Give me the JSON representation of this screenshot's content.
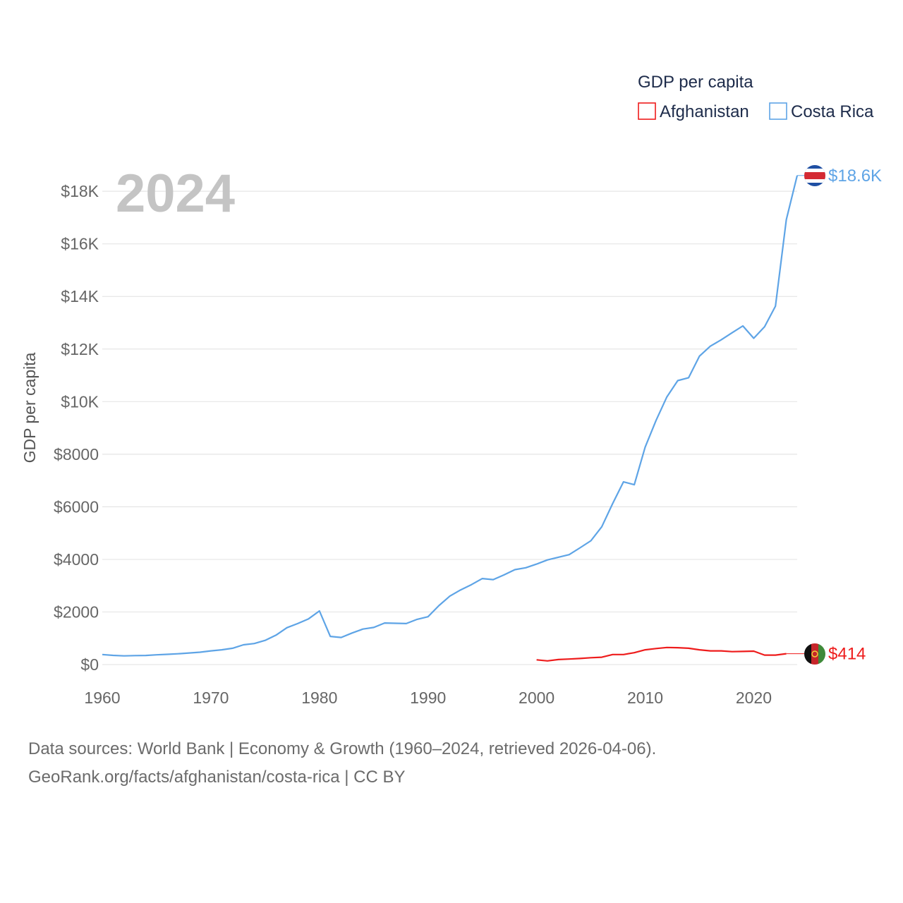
{
  "legend": {
    "title": "GDP per capita",
    "items": [
      {
        "label": "Afghanistan",
        "color": "#ee1c1c"
      },
      {
        "label": "Costa Rica",
        "color": "#5ea4e6"
      }
    ]
  },
  "year_label": "2024",
  "footer": {
    "line1": "Data sources: World Bank | Economy & Growth (1960–2024, retrieved 2026-04-06).",
    "line2": "GeoRank.org/facts/afghanistan/costa-rica | CC BY"
  },
  "chart_data": {
    "type": "line",
    "title": "GDP per capita",
    "xlabel": "",
    "ylabel": "GDP per capita",
    "xlim": [
      1960,
      2024
    ],
    "ylim": [
      0,
      19000
    ],
    "x_ticks": [
      1960,
      1970,
      1980,
      1990,
      2000,
      2010,
      2020
    ],
    "x_tick_labels": [
      "1960",
      "1970",
      "1980",
      "1990",
      "2000",
      "2010",
      "2020"
    ],
    "y_ticks": [
      0,
      2000,
      4000,
      6000,
      8000,
      10000,
      12000,
      14000,
      16000,
      18000
    ],
    "y_tick_labels": [
      "$0",
      "$2000",
      "$4000",
      "$6000",
      "$8000",
      "$10K",
      "$12K",
      "$14K",
      "$16K",
      "$18K"
    ],
    "grid": true,
    "legend_position": "top-right",
    "series": [
      {
        "name": "Costa Rica",
        "color": "#5ea4e6",
        "end_label": "$18.6K",
        "end_value": 18600,
        "x": [
          1960,
          1961,
          1962,
          1963,
          1964,
          1965,
          1966,
          1967,
          1968,
          1969,
          1970,
          1971,
          1972,
          1973,
          1974,
          1975,
          1976,
          1977,
          1978,
          1979,
          1980,
          1981,
          1982,
          1983,
          1984,
          1985,
          1986,
          1987,
          1988,
          1989,
          1990,
          1991,
          1992,
          1993,
          1994,
          1995,
          1996,
          1997,
          1998,
          1999,
          2000,
          2001,
          2002,
          2003,
          2004,
          2005,
          2006,
          2007,
          2008,
          2009,
          2010,
          2011,
          2012,
          2013,
          2014,
          2015,
          2016,
          2017,
          2018,
          2019,
          2020,
          2021,
          2022,
          2023,
          2024
        ],
        "values": [
          380,
          350,
          330,
          340,
          345,
          370,
          390,
          410,
          440,
          470,
          520,
          560,
          620,
          750,
          800,
          920,
          1120,
          1400,
          1560,
          1740,
          2040,
          1070,
          1030,
          1200,
          1350,
          1410,
          1580,
          1570,
          1560,
          1720,
          1820,
          2240,
          2600,
          2840,
          3040,
          3270,
          3230,
          3410,
          3610,
          3680,
          3820,
          3980,
          4080,
          4180,
          4440,
          4710,
          5240,
          6120,
          6950,
          6840,
          8270,
          9280,
          10180,
          10800,
          10910,
          11730,
          12110,
          12350,
          12620,
          12880,
          12410,
          12850,
          13630,
          16920,
          18600
        ]
      },
      {
        "name": "Afghanistan",
        "color": "#ee1c1c",
        "end_label": "$414",
        "end_value": 414,
        "x": [
          2000,
          2001,
          2002,
          2003,
          2004,
          2005,
          2006,
          2007,
          2008,
          2009,
          2010,
          2011,
          2012,
          2013,
          2014,
          2015,
          2016,
          2017,
          2018,
          2019,
          2020,
          2021,
          2022,
          2023
        ],
        "values": [
          180,
          140,
          190,
          210,
          230,
          260,
          280,
          380,
          380,
          450,
          560,
          610,
          650,
          640,
          620,
          560,
          520,
          520,
          490,
          500,
          510,
          360,
          360,
          414
        ]
      }
    ]
  }
}
